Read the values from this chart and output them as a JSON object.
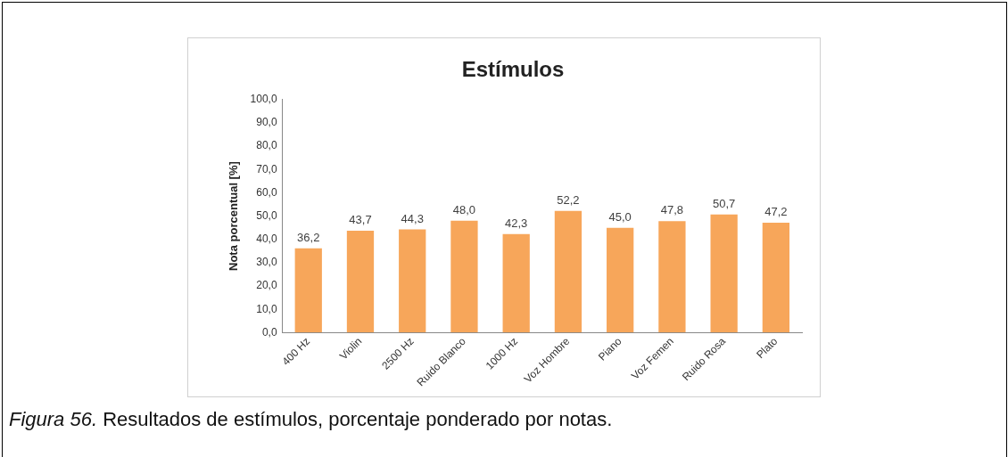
{
  "chart_data": {
    "type": "bar",
    "title": "Estímulos",
    "ylabel": "Nota porcentual [%]",
    "categories": [
      "400 Hz",
      "Violin",
      "2500 Hz",
      "Ruido Blanco",
      "1000 Hz",
      "Voz Hombre",
      "Piano",
      "Voz Femen",
      "Ruido Rosa",
      "Plato"
    ],
    "values": [
      36.2,
      43.7,
      44.3,
      48.0,
      42.3,
      52.2,
      45.0,
      47.8,
      50.7,
      47.2
    ],
    "value_labels": [
      "36,2",
      "43,7",
      "44,3",
      "48,0",
      "42,3",
      "52,2",
      "45,0",
      "47,8",
      "50,7",
      "47,2"
    ],
    "color": "#f7a65a",
    "ylim": [
      0,
      100
    ],
    "yticks": [
      {
        "value": 0,
        "label": "0,0"
      },
      {
        "value": 10,
        "label": "10,0"
      },
      {
        "value": 20,
        "label": "20,0"
      },
      {
        "value": 30,
        "label": "30,0"
      },
      {
        "value": 40,
        "label": "40,0"
      },
      {
        "value": 50,
        "label": "50,0"
      },
      {
        "value": 60,
        "label": "60,0"
      },
      {
        "value": 70,
        "label": "70,0"
      },
      {
        "value": 80,
        "label": "80,0"
      },
      {
        "value": 90,
        "label": "90,0"
      },
      {
        "value": 100,
        "label": "100,0"
      }
    ],
    "grid": false,
    "legend": false,
    "annotations": [
      "Figura 56.",
      "Resultados de estímulos, porcentaje ponderado por notas."
    ]
  }
}
